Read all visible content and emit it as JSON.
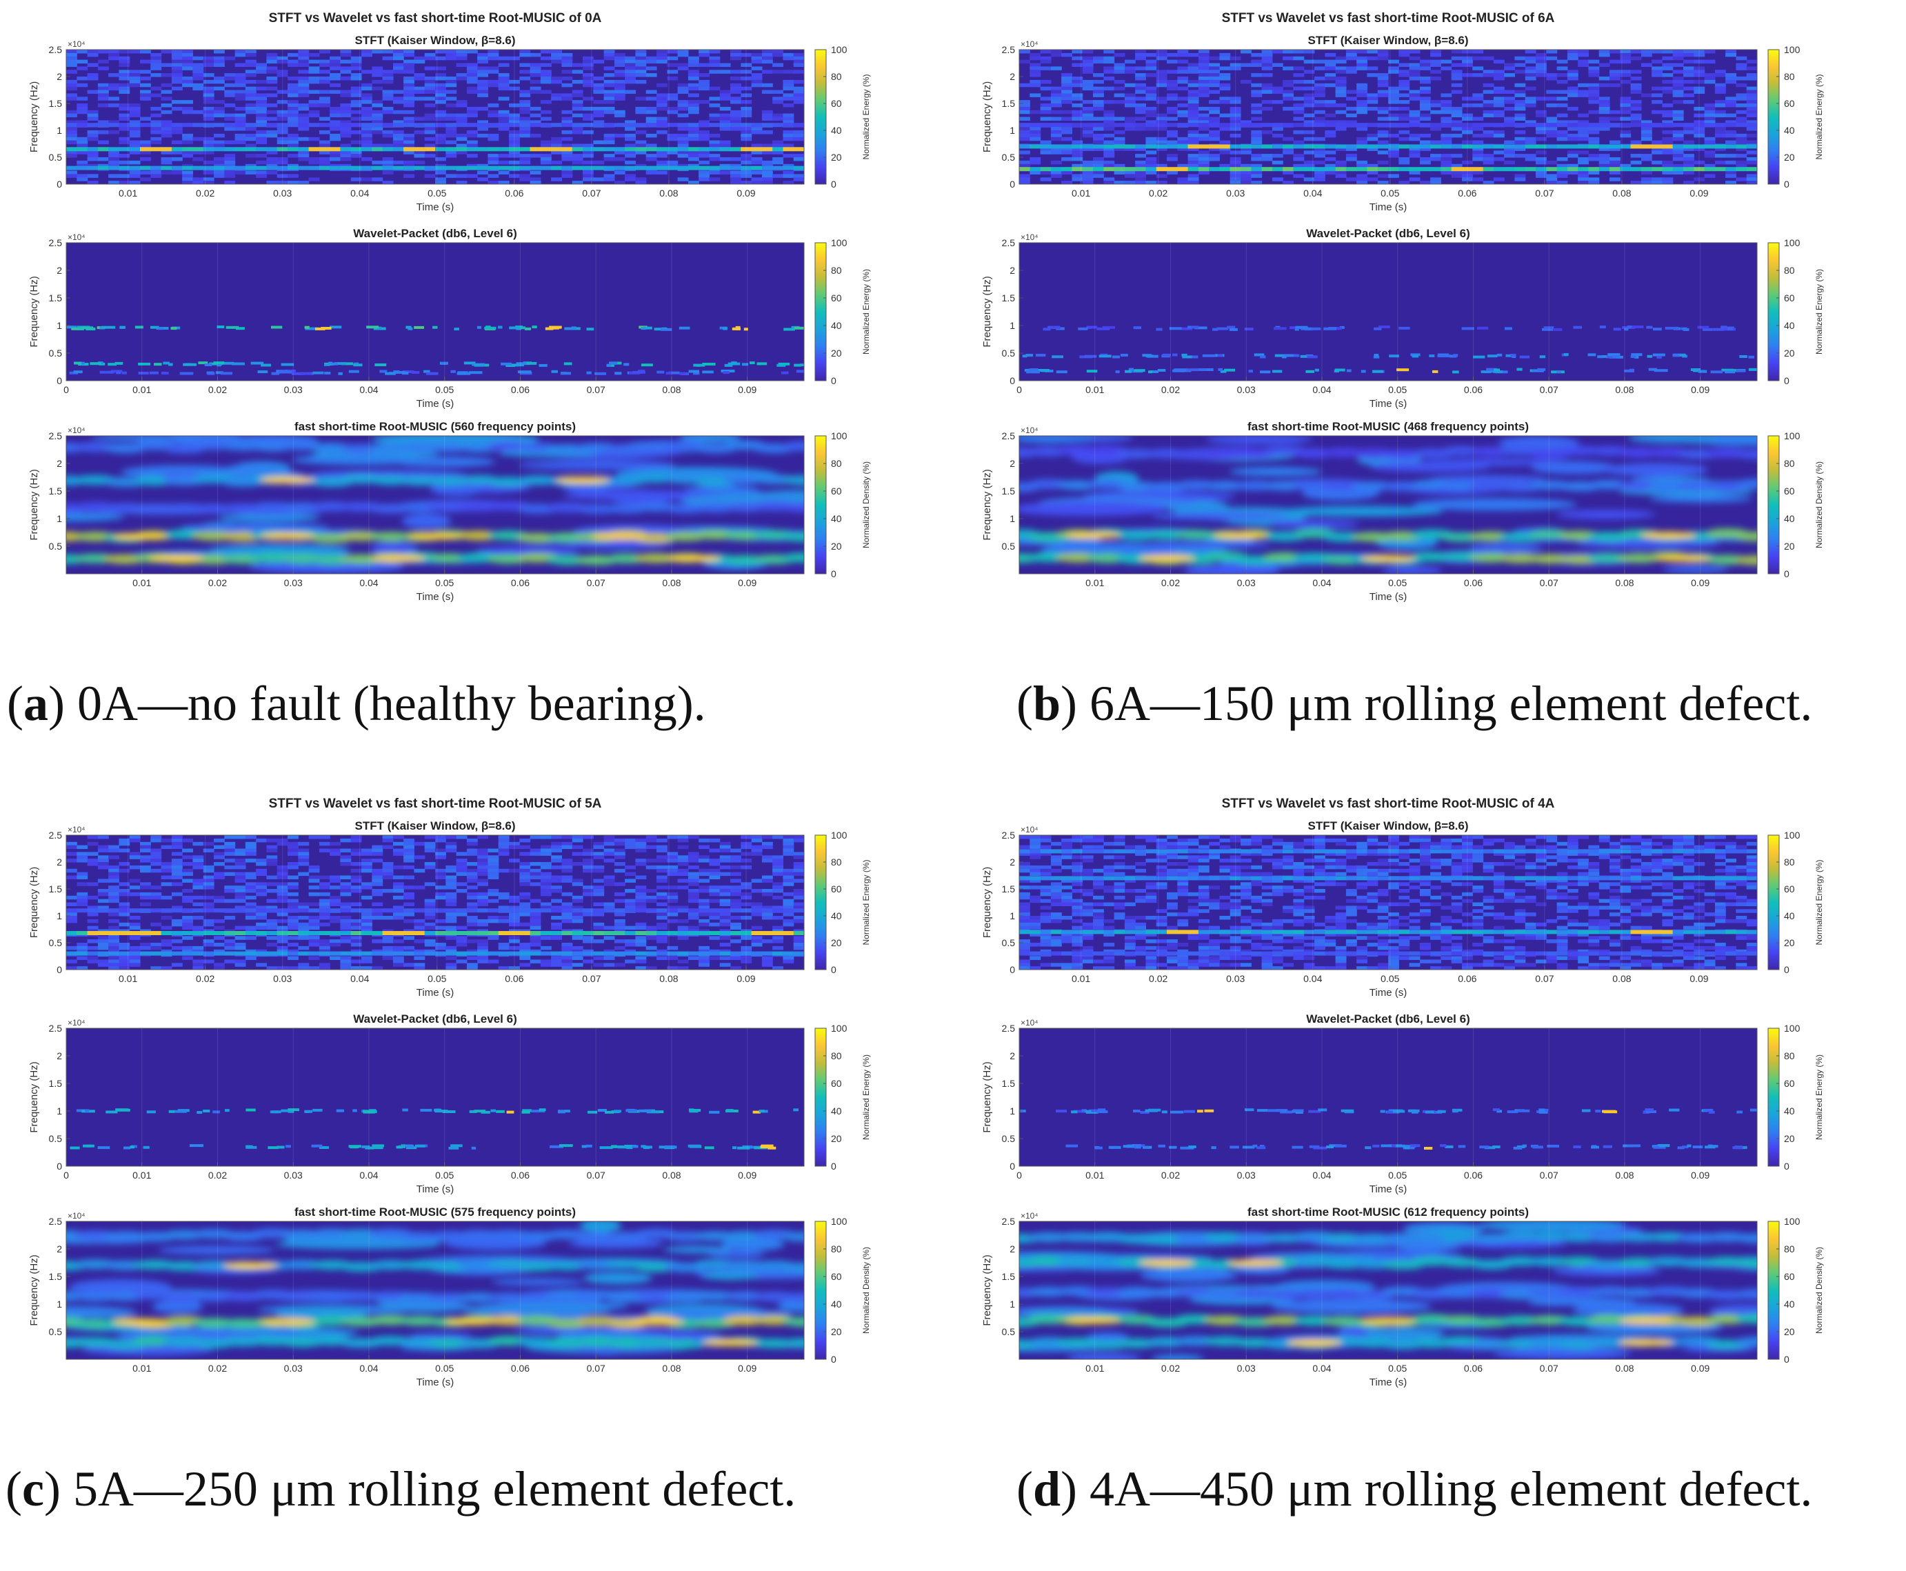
{
  "caption_scheme": {
    "open": "(",
    "close": ")"
  },
  "colormap": [
    "#3e26a8",
    "#4743f1",
    "#307ef2",
    "#1aa5db",
    "#12beb9",
    "#5fca76",
    "#c3bd3a",
    "#fbc633",
    "#f9fb0e"
  ],
  "background_color": "#35249c",
  "chart_data": [
    {
      "type": "heatmap",
      "title": "STFT vs Wavelet vs fast short-time Root-MUSIC of 0A",
      "caption": {
        "letter": "a",
        "text": "0A—no fault (healthy bearing)."
      },
      "panels": [
        {
          "kind": "stft",
          "subtitle": "STFT (Kaiser Window, β=8.6)",
          "xlabel": "Time (s)",
          "ylabel": "Frequency (Hz)",
          "exponent": "×10⁴",
          "xlim": [
            0.002,
            0.0975
          ],
          "xticks": [
            "0.01",
            "0.02",
            "0.03",
            "0.04",
            "0.05",
            "0.06",
            "0.07",
            "0.08",
            "0.09"
          ],
          "ylim": [
            0,
            2.5
          ],
          "yticks": [
            "0",
            "0.5",
            "1",
            "1.5",
            "2",
            "2.5"
          ],
          "colorbar": {
            "label": "Normalized Energy (%)",
            "ticks": [
              "0",
              "20",
              "40",
              "60",
              "80",
              "100"
            ]
          },
          "bands": [
            {
              "f": 0.65,
              "level": 0.55,
              "hot": [
                0.12,
                0.34,
                0.47,
                0.65,
                0.93,
                0.99
              ]
            },
            {
              "f": 0.3,
              "level": 0.45,
              "hot": []
            },
            {
              "f": 1.1,
              "level": 0.2,
              "hot": []
            }
          ]
        },
        {
          "kind": "wavelet",
          "subtitle": "Wavelet-Packet (db6, Level 6)",
          "xlabel": "Time (s)",
          "ylabel": "Frequency (Hz)",
          "exponent": "×10⁴",
          "xlim": [
            0,
            0.0975
          ],
          "xticks": [
            "0",
            "0.01",
            "0.02",
            "0.03",
            "0.04",
            "0.05",
            "0.06",
            "0.07",
            "0.08",
            "0.09"
          ],
          "ylim": [
            0,
            2.5
          ],
          "yticks": [
            "0",
            "0.5",
            "1",
            "1.5",
            "2",
            "2.5"
          ],
          "colorbar": {
            "label": "Normalized Energy (%)",
            "ticks": [
              "0",
              "20",
              "40",
              "60",
              "80",
              "100"
            ]
          },
          "bands": [
            {
              "f": 0.95,
              "level": 0.6,
              "hot": [
                0.34,
                0.65,
                0.91
              ]
            },
            {
              "f": 0.3,
              "level": 0.55,
              "hot": [
                0.33,
                0.52
              ]
            },
            {
              "f": 0.15,
              "level": 0.3,
              "hot": []
            }
          ]
        },
        {
          "kind": "music",
          "subtitle": "fast short-time Root-MUSIC (560 frequency points)",
          "xlabel": "Time (s)",
          "ylabel": "Frequency (Hz)",
          "exponent": "×10⁴",
          "xlim": [
            0,
            0.0975
          ],
          "xticks": [
            "0.01",
            "0.02",
            "0.03",
            "0.04",
            "0.05",
            "0.06",
            "0.07",
            "0.08",
            "0.09"
          ],
          "ylim": [
            0,
            2.5
          ],
          "yticks": [
            "0.5",
            "1",
            "1.5",
            "2",
            "2.5"
          ],
          "colorbar": {
            "label": "Normalized Density (%)",
            "ticks": [
              "0",
              "20",
              "40",
              "60",
              "80",
              "100"
            ]
          },
          "bands": [
            {
              "f": 0.68,
              "level": 0.85,
              "hot": [
                0.1,
                0.3,
                0.5,
                0.75
              ]
            },
            {
              "f": 0.28,
              "level": 0.8,
              "hot": [
                0.15,
                0.45,
                0.85
              ]
            },
            {
              "f": 1.7,
              "level": 0.45,
              "hot": [
                0.3,
                0.7
              ]
            },
            {
              "f": 2.3,
              "level": 0.3,
              "hot": []
            },
            {
              "f": 1.2,
              "level": 0.25,
              "hot": []
            }
          ]
        }
      ]
    },
    {
      "type": "heatmap",
      "title": "STFT vs Wavelet vs fast short-time Root-MUSIC of 6A",
      "caption": {
        "letter": "b",
        "text": "6A—150 μm rolling element defect."
      },
      "panels": [
        {
          "kind": "stft",
          "subtitle": "STFT (Kaiser Window, β=8.6)",
          "xlabel": "Time (s)",
          "ylabel": "Frequency (Hz)",
          "exponent": "×10⁴",
          "xlim": [
            0.002,
            0.0975
          ],
          "xticks": [
            "0.01",
            "0.02",
            "0.03",
            "0.04",
            "0.05",
            "0.06",
            "0.07",
            "0.08",
            "0.09"
          ],
          "ylim": [
            0,
            2.5
          ],
          "yticks": [
            "0",
            "0.5",
            "1",
            "1.5",
            "2",
            "2.5"
          ],
          "colorbar": {
            "label": "Normalized Energy (%)",
            "ticks": [
              "0",
              "20",
              "40",
              "60",
              "80",
              "100"
            ]
          },
          "bands": [
            {
              "f": 0.7,
              "level": 0.5,
              "hot": [
                0.25,
                0.85
              ]
            },
            {
              "f": 0.28,
              "level": 0.65,
              "hot": [
                0.2,
                0.6
              ]
            },
            {
              "f": 1.1,
              "level": 0.15,
              "hot": []
            }
          ]
        },
        {
          "kind": "wavelet",
          "subtitle": "Wavelet-Packet (db6, Level 6)",
          "xlabel": "Time (s)",
          "ylabel": "Frequency (Hz)",
          "exponent": "×10⁴",
          "xlim": [
            0,
            0.0975
          ],
          "xticks": [
            "0",
            "0.01",
            "0.02",
            "0.03",
            "0.04",
            "0.05",
            "0.06",
            "0.07",
            "0.08",
            "0.09"
          ],
          "ylim": [
            0,
            2.5
          ],
          "yticks": [
            "0",
            "0.5",
            "1",
            "1.5",
            "2",
            "2.5"
          ],
          "colorbar": {
            "label": "Normalized Energy (%)",
            "ticks": [
              "0",
              "20",
              "40",
              "60",
              "80",
              "100"
            ]
          },
          "bands": [
            {
              "f": 0.95,
              "level": 0.25,
              "hot": []
            },
            {
              "f": 0.45,
              "level": 0.35,
              "hot": []
            },
            {
              "f": 0.18,
              "level": 0.45,
              "hot": [
                0.5,
                0.55
              ]
            }
          ]
        },
        {
          "kind": "music",
          "subtitle": "fast short-time Root-MUSIC (468 frequency points)",
          "xlabel": "Time (s)",
          "ylabel": "Frequency (Hz)",
          "exponent": "×10⁴",
          "xlim": [
            0,
            0.0975
          ],
          "xticks": [
            "0.01",
            "0.02",
            "0.03",
            "0.04",
            "0.05",
            "0.06",
            "0.07",
            "0.08",
            "0.09"
          ],
          "ylim": [
            0,
            2.5
          ],
          "yticks": [
            "0.5",
            "1",
            "1.5",
            "2",
            "2.5"
          ],
          "colorbar": {
            "label": "Normalized Density (%)",
            "ticks": [
              "0",
              "20",
              "40",
              "60",
              "80",
              "100"
            ]
          },
          "bands": [
            {
              "f": 0.7,
              "level": 0.75,
              "hot": [
                0.1,
                0.3,
                0.88
              ]
            },
            {
              "f": 0.28,
              "level": 0.8,
              "hot": [
                0.2,
                0.5,
                0.9
              ]
            },
            {
              "f": 1.6,
              "level": 0.3,
              "hot": []
            },
            {
              "f": 2.2,
              "level": 0.2,
              "hot": []
            }
          ]
        }
      ]
    },
    {
      "type": "heatmap",
      "title": "STFT vs Wavelet vs fast short-time Root-MUSIC of 5A",
      "caption": {
        "letter": "c",
        "text": "5A—250 μm rolling element defect."
      },
      "panels": [
        {
          "kind": "stft",
          "subtitle": "STFT (Kaiser Window, β=8.6)",
          "xlabel": "Time (s)",
          "ylabel": "Frequency (Hz)",
          "exponent": "×10⁴",
          "xlim": [
            0.002,
            0.0975
          ],
          "xticks": [
            "0.01",
            "0.02",
            "0.03",
            "0.04",
            "0.05",
            "0.06",
            "0.07",
            "0.08",
            "0.09"
          ],
          "ylim": [
            0,
            2.5
          ],
          "yticks": [
            "0",
            "0.5",
            "1",
            "1.5",
            "2",
            "2.5"
          ],
          "colorbar": {
            "label": "Normalized Energy (%)",
            "ticks": [
              "0",
              "20",
              "40",
              "60",
              "80",
              "100"
            ]
          },
          "bands": [
            {
              "f": 0.68,
              "level": 0.6,
              "hot": [
                0.05,
                0.1,
                0.45,
                0.6,
                0.95
              ]
            },
            {
              "f": 0.3,
              "level": 0.35,
              "hot": []
            },
            {
              "f": 1.1,
              "level": 0.2,
              "hot": []
            }
          ]
        },
        {
          "kind": "wavelet",
          "subtitle": "Wavelet-Packet (db6, Level 6)",
          "xlabel": "Time (s)",
          "ylabel": "Frequency (Hz)",
          "exponent": "×10⁴",
          "xlim": [
            0,
            0.0975
          ],
          "xticks": [
            "0",
            "0.01",
            "0.02",
            "0.03",
            "0.04",
            "0.05",
            "0.06",
            "0.07",
            "0.08",
            "0.09"
          ],
          "ylim": [
            0,
            2.5
          ],
          "yticks": [
            "0",
            "0.5",
            "1",
            "1.5",
            "2",
            "2.5"
          ],
          "colorbar": {
            "label": "Normalized Energy (%)",
            "ticks": [
              "0",
              "20",
              "40",
              "60",
              "80",
              "100"
            ]
          },
          "bands": [
            {
              "f": 1.0,
              "level": 0.5,
              "hot": [
                0.6,
                0.92
              ]
            },
            {
              "f": 0.35,
              "level": 0.5,
              "hot": [
                0.5,
                0.95
              ]
            }
          ]
        },
        {
          "kind": "music",
          "subtitle": "fast short-time Root-MUSIC (575 frequency points)",
          "xlabel": "Time (s)",
          "ylabel": "Frequency (Hz)",
          "exponent": "×10⁴",
          "xlim": [
            0,
            0.0975
          ],
          "xticks": [
            "0.01",
            "0.02",
            "0.03",
            "0.04",
            "0.05",
            "0.06",
            "0.07",
            "0.08",
            "0.09"
          ],
          "ylim": [
            0,
            2.5
          ],
          "yticks": [
            "0.5",
            "1",
            "1.5",
            "2",
            "2.5"
          ],
          "colorbar": {
            "label": "Normalized Density (%)",
            "ticks": [
              "0",
              "20",
              "40",
              "60",
              "80",
              "100"
            ]
          },
          "bands": [
            {
              "f": 0.68,
              "level": 0.9,
              "hot": [
                0.1,
                0.3,
                0.55,
                0.8
              ]
            },
            {
              "f": 0.3,
              "level": 0.6,
              "hot": [
                0.9
              ]
            },
            {
              "f": 1.7,
              "level": 0.5,
              "hot": [
                0.25
              ]
            },
            {
              "f": 2.25,
              "level": 0.35,
              "hot": []
            },
            {
              "f": 1.15,
              "level": 0.3,
              "hot": []
            }
          ]
        }
      ]
    },
    {
      "type": "heatmap",
      "title": "STFT vs Wavelet vs fast short-time Root-MUSIC of 4A",
      "caption": {
        "letter": "d",
        "text": "4A—450 μm rolling element defect."
      },
      "panels": [
        {
          "kind": "stft",
          "subtitle": "STFT (Kaiser Window, β=8.6)",
          "xlabel": "Time (s)",
          "ylabel": "Frequency (Hz)",
          "exponent": "×10⁴",
          "xlim": [
            0.002,
            0.0975
          ],
          "xticks": [
            "0.01",
            "0.02",
            "0.03",
            "0.04",
            "0.05",
            "0.06",
            "0.07",
            "0.08",
            "0.09"
          ],
          "ylim": [
            0,
            2.5
          ],
          "yticks": [
            "0",
            "0.5",
            "1",
            "1.5",
            "2",
            "2.5"
          ],
          "colorbar": {
            "label": "Normalized Energy (%)",
            "ticks": [
              "0",
              "20",
              "40",
              "60",
              "80",
              "100"
            ]
          },
          "bands": [
            {
              "f": 0.7,
              "level": 0.45,
              "hot": [
                0.22,
                0.85
              ]
            },
            {
              "f": 1.7,
              "level": 0.35,
              "hot": []
            },
            {
              "f": 2.2,
              "level": 0.3,
              "hot": []
            },
            {
              "f": 0.3,
              "level": 0.2,
              "hot": []
            }
          ]
        },
        {
          "kind": "wavelet",
          "subtitle": "Wavelet-Packet (db6, Level 6)",
          "xlabel": "Time (s)",
          "ylabel": "Frequency (Hz)",
          "exponent": "×10⁴",
          "xlim": [
            0,
            0.0975
          ],
          "xticks": [
            "0",
            "0.01",
            "0.02",
            "0.03",
            "0.04",
            "0.05",
            "0.06",
            "0.07",
            "0.08",
            "0.09"
          ],
          "ylim": [
            0,
            2.5
          ],
          "yticks": [
            "0",
            "0.5",
            "1",
            "1.5",
            "2",
            "2.5"
          ],
          "colorbar": {
            "label": "Normalized Energy (%)",
            "ticks": [
              "0",
              "20",
              "40",
              "60",
              "80",
              "100"
            ]
          },
          "bands": [
            {
              "f": 1.0,
              "level": 0.35,
              "hot": [
                0.25,
                0.8
              ]
            },
            {
              "f": 0.35,
              "level": 0.35,
              "hot": [
                0.55
              ]
            }
          ]
        },
        {
          "kind": "music",
          "subtitle": "fast short-time Root-MUSIC (612 frequency points)",
          "xlabel": "Time (s)",
          "ylabel": "Frequency (Hz)",
          "exponent": "×10⁴",
          "xlim": [
            0,
            0.0975
          ],
          "xticks": [
            "0.01",
            "0.02",
            "0.03",
            "0.04",
            "0.05",
            "0.06",
            "0.07",
            "0.08",
            "0.09"
          ],
          "ylim": [
            0,
            2.5
          ],
          "yticks": [
            "0.5",
            "1",
            "1.5",
            "2",
            "2.5"
          ],
          "colorbar": {
            "label": "Normalized Density (%)",
            "ticks": [
              "0",
              "20",
              "40",
              "60",
              "80",
              "100"
            ]
          },
          "bands": [
            {
              "f": 0.7,
              "level": 0.85,
              "hot": [
                0.1,
                0.5,
                0.85
              ]
            },
            {
              "f": 1.75,
              "level": 0.6,
              "hot": [
                0.2,
                0.32
              ]
            },
            {
              "f": 2.2,
              "level": 0.45,
              "hot": []
            },
            {
              "f": 0.3,
              "level": 0.5,
              "hot": [
                0.4,
                0.85
              ]
            },
            {
              "f": 1.2,
              "level": 0.3,
              "hot": []
            }
          ]
        }
      ]
    }
  ]
}
